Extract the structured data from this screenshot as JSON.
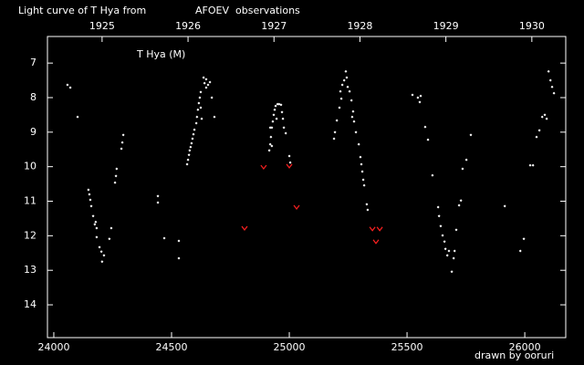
{
  "chart_data": {
    "type": "scatter",
    "title": [
      "Light curve of T Hya from",
      "AFOEV",
      "observations"
    ],
    "title_colors": [
      "#ffffff",
      "#ffff00",
      "#ffffff"
    ],
    "annotation": "T Hya (M)",
    "credit": "drawn by ooruri",
    "credit_color": "#00ffff",
    "xlim": [
      23973,
      26174
    ],
    "xticks": [
      24000,
      24500,
      25000,
      25500,
      26000
    ],
    "x2ticks": [
      {
        "value": 24205,
        "label": "1925"
      },
      {
        "value": 24570,
        "label": "1926"
      },
      {
        "value": 24935,
        "label": "1927"
      },
      {
        "value": 25300,
        "label": "1928"
      },
      {
        "value": 25665,
        "label": "1929"
      },
      {
        "value": 26030,
        "label": "1930"
      }
    ],
    "ylim": [
      6.23,
      14.95
    ],
    "yticks": [
      7,
      8,
      9,
      10,
      11,
      12,
      13,
      14
    ],
    "y_inverted": true,
    "grid": false,
    "axis_color": "#ffffff",
    "series": [
      {
        "color": "#ffffff",
        "marker": "dot",
        "x": [
          24058,
          24070,
          24101,
          24147,
          24151,
          24155,
          24159,
          24167,
          24174,
          24178,
          24182,
          24182,
          24194,
          24202,
          24205,
          24213,
          24236,
          24244,
          24260,
          24264,
          24267,
          24287,
          24291,
          24295,
          24442,
          24442,
          24469,
          24531,
          24531,
          24566,
          24570,
          24574,
          24577,
          24581,
          24585,
          24589,
          24593,
          24597,
          24605,
          24608,
          24612,
          24616,
          24620,
          24624,
          24624,
          24628,
          24636,
          24640,
          24647,
          24647,
          24655,
          24663,
          24671,
          24682,
          24915,
          24919,
          24919,
          24922,
          24926,
          24926,
          24930,
          24934,
          24938,
          24942,
          24946,
          24950,
          24957,
          24965,
          24969,
          24973,
          24977,
          24985,
          25000,
          25004,
          25190,
          25194,
          25202,
          25213,
          25217,
          25221,
          25225,
          25233,
          25240,
          25244,
          25248,
          25256,
          25264,
          25267,
          25271,
          25275,
          25283,
          25295,
          25302,
          25306,
          25310,
          25314,
          25318,
          25329,
          25333,
          25523,
          25546,
          25554,
          25558,
          25577,
          25589,
          25608,
          25632,
          25636,
          25643,
          25651,
          25659,
          25663,
          25671,
          25678,
          25690,
          25698,
          25702,
          25709,
          25721,
          25729,
          25736,
          25752,
          25771,
          25915,
          25981,
          25996,
          26023,
          26035,
          26050,
          26062,
          26074,
          26085,
          26093,
          26101,
          26109,
          26116,
          26124
        ],
        "values": [
          7.63,
          7.71,
          8.56,
          10.67,
          10.8,
          10.96,
          11.14,
          11.43,
          11.67,
          11.6,
          11.78,
          12.04,
          12.33,
          12.46,
          12.75,
          12.57,
          12.09,
          11.78,
          10.46,
          10.27,
          10.06,
          9.48,
          9.3,
          9.08,
          10.85,
          11.04,
          12.07,
          12.15,
          12.65,
          9.93,
          9.8,
          9.66,
          9.53,
          9.43,
          9.32,
          9.19,
          9.06,
          8.93,
          8.74,
          8.56,
          8.35,
          8.16,
          8.0,
          8.29,
          7.84,
          8.61,
          7.42,
          7.58,
          7.71,
          7.47,
          7.63,
          7.55,
          8.0,
          8.56,
          9.53,
          9.35,
          8.87,
          9.14,
          8.87,
          9.4,
          8.69,
          8.5,
          8.35,
          8.24,
          8.61,
          8.19,
          8.19,
          8.21,
          8.42,
          8.61,
          8.87,
          9.03,
          9.69,
          9.88,
          9.19,
          9.0,
          8.66,
          8.29,
          7.82,
          8.03,
          7.63,
          7.5,
          7.24,
          7.42,
          7.69,
          7.82,
          8.08,
          8.56,
          8.4,
          8.69,
          9.0,
          9.35,
          9.72,
          9.93,
          10.14,
          10.38,
          10.54,
          11.09,
          11.25,
          7.92,
          8.0,
          8.13,
          7.95,
          8.85,
          9.22,
          10.25,
          11.17,
          11.43,
          11.72,
          11.99,
          12.17,
          12.38,
          12.57,
          12.44,
          13.04,
          12.65,
          12.44,
          11.83,
          11.12,
          10.98,
          10.06,
          9.8,
          9.08,
          11.14,
          12.44,
          12.09,
          9.96,
          9.96,
          9.14,
          8.95,
          8.56,
          8.5,
          8.61,
          7.24,
          7.5,
          7.69,
          7.87
        ]
      },
      {
        "color": "#ff2020",
        "marker": "v",
        "x": [
          24810,
          24891,
          25000,
          25031,
          25353,
          25368,
          25384
        ],
        "values": [
          11.78,
          10.01,
          9.98,
          11.17,
          11.8,
          12.17,
          11.8
        ]
      }
    ]
  }
}
